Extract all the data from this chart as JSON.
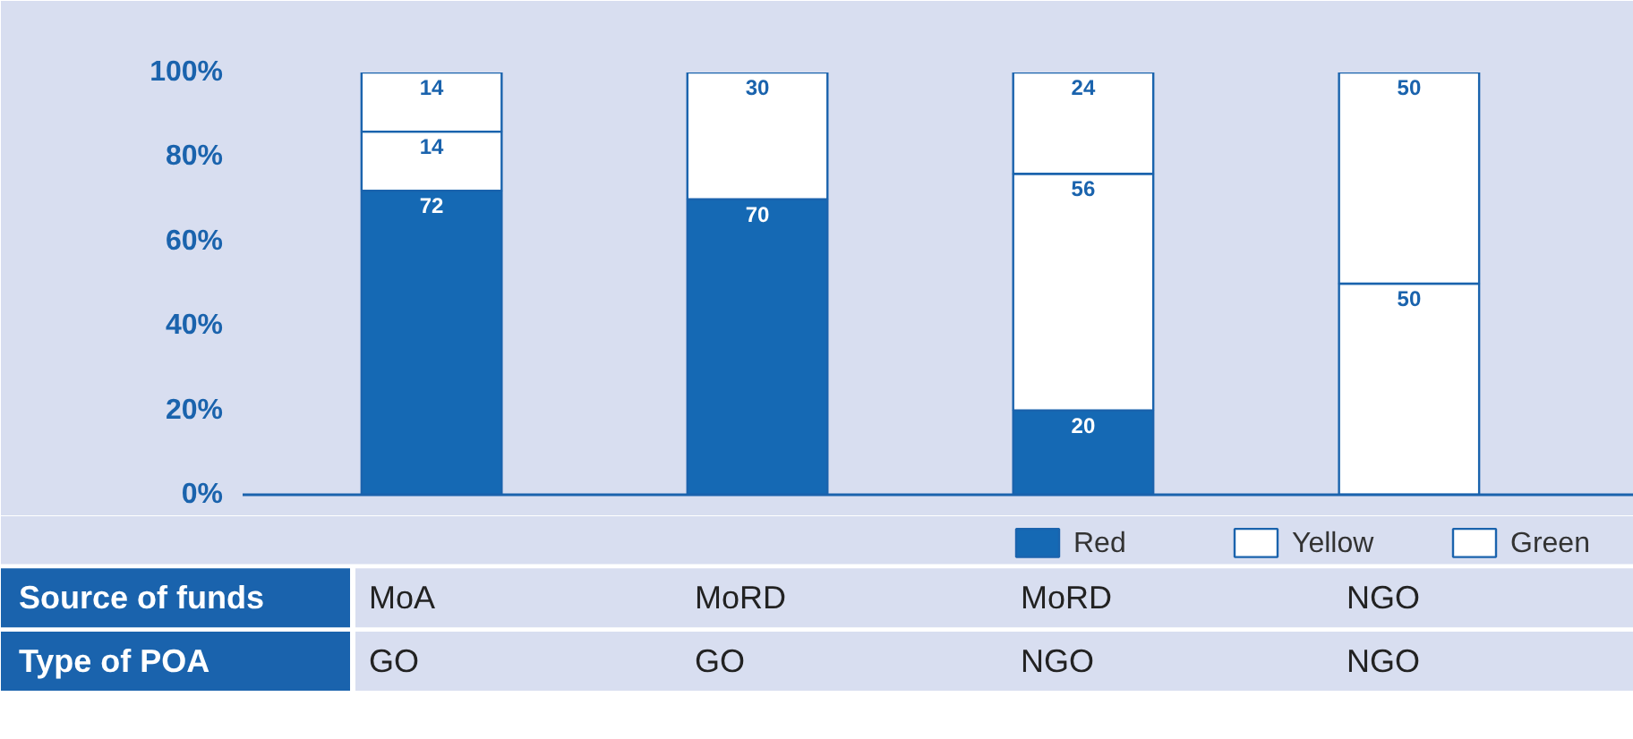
{
  "chart_data": {
    "type": "bar",
    "stacked": true,
    "categories": [
      "MoA",
      "MoRD",
      "MoRD",
      "NGO"
    ],
    "series": [
      {
        "name": "Red",
        "color": "#1569b4",
        "values": [
          72,
          70,
          20,
          0
        ],
        "value_labels": [
          "72",
          "70",
          "20",
          null
        ]
      },
      {
        "name": "Yellow",
        "color": "#ffffff",
        "values": [
          14,
          0,
          56,
          50
        ],
        "value_labels": [
          "14",
          null,
          "56",
          "50"
        ]
      },
      {
        "name": "Green",
        "color": "#ffffff",
        "values": [
          14,
          30,
          24,
          50
        ],
        "value_labels": [
          "14",
          "30",
          "24",
          "50"
        ]
      }
    ],
    "ylim": [
      0,
      100
    ],
    "yticks": [
      {
        "value": 0,
        "label": "0%"
      },
      {
        "value": 20,
        "label": "20%"
      },
      {
        "value": 40,
        "label": "40%"
      },
      {
        "value": 60,
        "label": "60%"
      },
      {
        "value": 80,
        "label": "80%"
      },
      {
        "value": 100,
        "label": "100%"
      }
    ],
    "grid": false,
    "legend": "bottom right",
    "annotations": [
      "Source of funds",
      "Type of POA",
      "GO",
      "GO",
      "NGO",
      "NGO"
    ]
  }
}
